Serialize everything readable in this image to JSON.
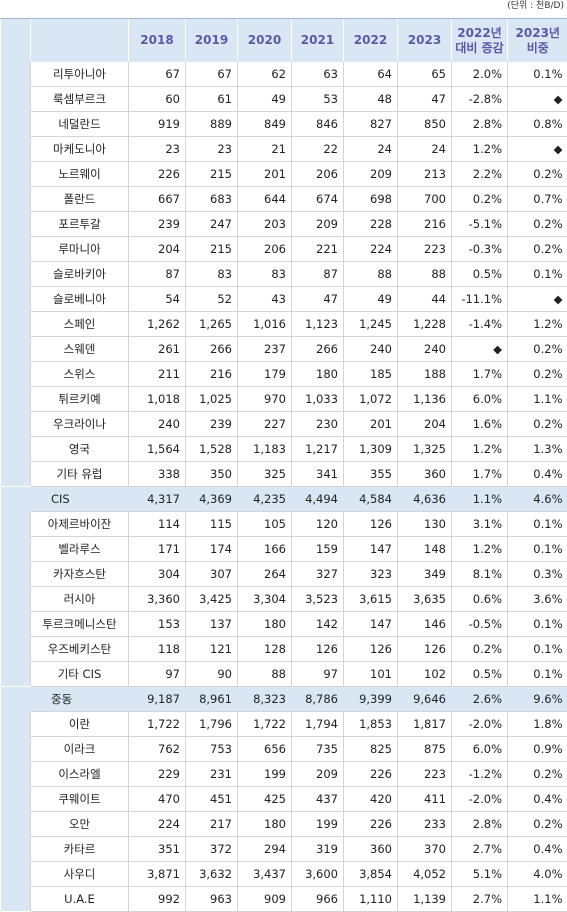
{
  "table": {
    "unit": "(단위 : 천B/D)",
    "columns": [
      "2018",
      "2019",
      "2020",
      "2021",
      "2022",
      "2023",
      [
        "2022년",
        "대비 증감"
      ],
      [
        "2023년",
        "비중"
      ]
    ],
    "sections": [
      {
        "rows": [
          {
            "name": "리투아니아",
            "cells": [
              "67",
              "67",
              "62",
              "63",
              "64",
              "65",
              "2.0%",
              "0.1%"
            ]
          },
          {
            "name": "룩셈부르크",
            "cells": [
              "60",
              "61",
              "49",
              "53",
              "48",
              "47",
              "-2.8%",
              "◆"
            ]
          },
          {
            "name": "네덜란드",
            "cells": [
              "919",
              "889",
              "849",
              "846",
              "827",
              "850",
              "2.8%",
              "0.8%"
            ]
          },
          {
            "name": "마케도니아",
            "cells": [
              "23",
              "23",
              "21",
              "22",
              "24",
              "24",
              "1.2%",
              "◆"
            ]
          },
          {
            "name": "노르웨이",
            "cells": [
              "226",
              "215",
              "201",
              "206",
              "209",
              "213",
              "2.2%",
              "0.2%"
            ]
          },
          {
            "name": "폴란드",
            "cells": [
              "667",
              "683",
              "644",
              "674",
              "698",
              "700",
              "0.2%",
              "0.7%"
            ]
          },
          {
            "name": "포르투갈",
            "cells": [
              "239",
              "247",
              "203",
              "209",
              "228",
              "216",
              "-5.1%",
              "0.2%"
            ]
          },
          {
            "name": "루마니아",
            "cells": [
              "204",
              "215",
              "206",
              "221",
              "224",
              "223",
              "-0.3%",
              "0.2%"
            ]
          },
          {
            "name": "슬로바키아",
            "cells": [
              "87",
              "83",
              "83",
              "87",
              "88",
              "88",
              "0.5%",
              "0.1%"
            ]
          },
          {
            "name": "슬로베니아",
            "cells": [
              "54",
              "52",
              "43",
              "47",
              "49",
              "44",
              "-11.1%",
              "◆"
            ]
          },
          {
            "name": "스페인",
            "cells": [
              "1,262",
              "1,265",
              "1,016",
              "1,123",
              "1,245",
              "1,228",
              "-1.4%",
              "1.2%"
            ]
          },
          {
            "name": "스웨덴",
            "cells": [
              "261",
              "266",
              "237",
              "266",
              "240",
              "240",
              "◆",
              "0.2%"
            ]
          },
          {
            "name": "스위스",
            "cells": [
              "211",
              "216",
              "179",
              "180",
              "185",
              "188",
              "1.7%",
              "0.2%"
            ]
          },
          {
            "name": "튀르키예",
            "cells": [
              "1,018",
              "1,025",
              "970",
              "1,033",
              "1,072",
              "1,136",
              "6.0%",
              "1.1%"
            ]
          },
          {
            "name": "우크라이나",
            "cells": [
              "240",
              "239",
              "227",
              "230",
              "201",
              "204",
              "1.6%",
              "0.2%"
            ]
          },
          {
            "name": "영국",
            "cells": [
              "1,564",
              "1,528",
              "1,183",
              "1,217",
              "1,309",
              "1,325",
              "1.2%",
              "1.3%"
            ]
          },
          {
            "name": "기타 유럽",
            "cells": [
              "338",
              "350",
              "325",
              "341",
              "355",
              "360",
              "1.7%",
              "0.4%"
            ]
          }
        ]
      },
      {
        "header": {
          "name": "CIS",
          "cells": [
            "4,317",
            "4,369",
            "4,235",
            "4,494",
            "4,584",
            "4,636",
            "1.1%",
            "4.6%"
          ]
        },
        "rows": [
          {
            "name": "아제르바이잔",
            "cells": [
              "114",
              "115",
              "105",
              "120",
              "126",
              "130",
              "3.1%",
              "0.1%"
            ]
          },
          {
            "name": "벨라루스",
            "cells": [
              "171",
              "174",
              "166",
              "159",
              "147",
              "148",
              "1.2%",
              "0.1%"
            ]
          },
          {
            "name": "카자흐스탄",
            "cells": [
              "304",
              "307",
              "264",
              "327",
              "323",
              "349",
              "8.1%",
              "0.3%"
            ]
          },
          {
            "name": "러시아",
            "cells": [
              "3,360",
              "3,425",
              "3,304",
              "3,523",
              "3,615",
              "3,635",
              "0.6%",
              "3.6%"
            ]
          },
          {
            "name": "투르크메니스탄",
            "cells": [
              "153",
              "137",
              "180",
              "142",
              "147",
              "146",
              "-0.5%",
              "0.1%"
            ]
          },
          {
            "name": "우즈베키스탄",
            "cells": [
              "118",
              "121",
              "128",
              "126",
              "126",
              "126",
              "0.2%",
              "0.1%"
            ]
          },
          {
            "name": "기타 CIS",
            "cells": [
              "97",
              "90",
              "88",
              "97",
              "101",
              "102",
              "0.5%",
              "0.1%"
            ]
          }
        ]
      },
      {
        "header": {
          "name": "중동",
          "cells": [
            "9,187",
            "8,961",
            "8,323",
            "8,786",
            "9,399",
            "9,646",
            "2.6%",
            "9.6%"
          ]
        },
        "rows": [
          {
            "name": "이란",
            "cells": [
              "1,722",
              "1,796",
              "1,722",
              "1,794",
              "1,853",
              "1,817",
              "-2.0%",
              "1.8%"
            ]
          },
          {
            "name": "이라크",
            "cells": [
              "762",
              "753",
              "656",
              "735",
              "825",
              "875",
              "6.0%",
              "0.9%"
            ]
          },
          {
            "name": "이스라엘",
            "cells": [
              "229",
              "231",
              "199",
              "209",
              "226",
              "223",
              "-1.2%",
              "0.2%"
            ]
          },
          {
            "name": "쿠웨이트",
            "cells": [
              "470",
              "451",
              "425",
              "437",
              "420",
              "411",
              "-2.0%",
              "0.4%"
            ]
          },
          {
            "name": "오만",
            "cells": [
              "224",
              "217",
              "180",
              "199",
              "226",
              "233",
              "2.8%",
              "0.2%"
            ]
          },
          {
            "name": "카타르",
            "cells": [
              "351",
              "372",
              "294",
              "319",
              "360",
              "370",
              "2.7%",
              "0.4%"
            ]
          },
          {
            "name": "사우디",
            "cells": [
              "3,871",
              "3,632",
              "3,437",
              "3,600",
              "3,854",
              "4,052",
              "5.1%",
              "4.0%"
            ]
          },
          {
            "name": "U.A.E",
            "cells": [
              "992",
              "963",
              "909",
              "966",
              "1,110",
              "1,139",
              "2.7%",
              "1.1%"
            ]
          }
        ]
      }
    ]
  }
}
